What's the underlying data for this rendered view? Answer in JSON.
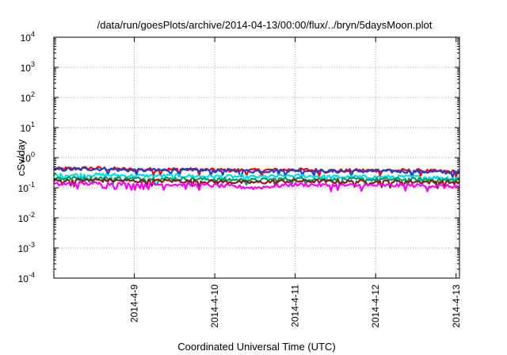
{
  "chart_data": {
    "type": "line",
    "title": "/data/run/goesPlots/archive/2014-04-13/00:00/flux/../bryn/5daysMoon.plot",
    "xlabel": "Coordinated Universal Time (UTC)",
    "ylabel": "cSv/day",
    "x_range": [
      "2014-04-08 00:00",
      "2014-04-13 01:00"
    ],
    "x_ticks": [
      "2014-4-9",
      "2014-4-10",
      "2014-4-11",
      "2014-4-12",
      "2014-4-13"
    ],
    "ylim": [
      0.0001,
      10000
    ],
    "y_scale": "log",
    "y_ticks": [
      {
        "base": "10",
        "exp": "-4"
      },
      {
        "base": "10",
        "exp": "-3"
      },
      {
        "base": "10",
        "exp": "-2"
      },
      {
        "base": "10",
        "exp": "-1"
      },
      {
        "base": "10",
        "exp": "0"
      },
      {
        "base": "10",
        "exp": "1"
      },
      {
        "base": "10",
        "exp": "2"
      },
      {
        "base": "10",
        "exp": "3"
      },
      {
        "base": "10",
        "exp": "4"
      }
    ],
    "grid": true,
    "x": [
      "2014-04-08 00:00",
      "2014-04-08 12:00",
      "2014-04-09 00:00",
      "2014-04-09 12:00",
      "2014-04-10 00:00",
      "2014-04-10 12:00",
      "2014-04-11 00:00",
      "2014-04-11 12:00",
      "2014-04-12 00:00",
      "2014-04-12 12:00",
      "2014-04-13 00:00"
    ],
    "series": [
      {
        "color": "#ff0000",
        "values": [
          0.42,
          0.45,
          0.4,
          0.41,
          0.39,
          0.38,
          0.4,
          0.37,
          0.38,
          0.37,
          0.34
        ]
      },
      {
        "color": "#1f3fd0",
        "values": [
          0.4,
          0.43,
          0.38,
          0.39,
          0.37,
          0.36,
          0.38,
          0.35,
          0.36,
          0.35,
          0.32
        ]
      },
      {
        "color": "#00e0e0",
        "values": [
          0.26,
          0.27,
          0.25,
          0.25,
          0.24,
          0.23,
          0.25,
          0.23,
          0.23,
          0.23,
          0.21
        ]
      },
      {
        "color": "#00a060",
        "values": [
          0.21,
          0.21,
          0.2,
          0.2,
          0.19,
          0.18,
          0.2,
          0.19,
          0.19,
          0.19,
          0.18
        ]
      },
      {
        "color": "#8b1a1a",
        "values": [
          0.17,
          0.18,
          0.17,
          0.17,
          0.16,
          0.15,
          0.17,
          0.16,
          0.16,
          0.16,
          0.15
        ]
      },
      {
        "color": "#ff00ff",
        "values": [
          0.13,
          0.14,
          0.13,
          0.13,
          0.12,
          0.1,
          0.13,
          0.12,
          0.12,
          0.12,
          0.11
        ]
      }
    ]
  }
}
